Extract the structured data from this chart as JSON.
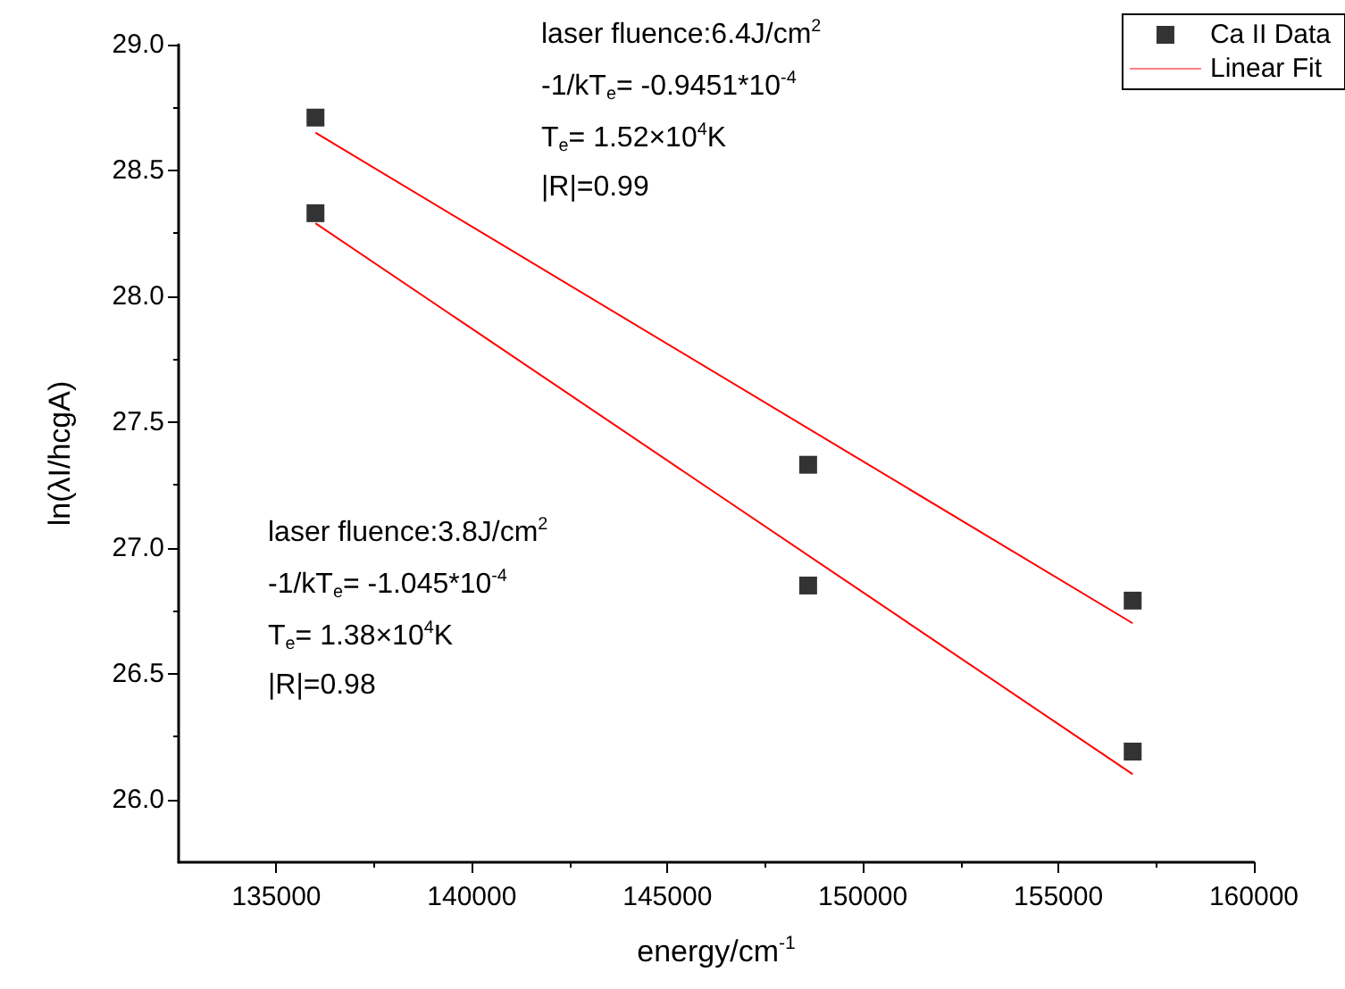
{
  "chart_data": {
    "type": "scatter",
    "xlabel": "energy/cm$^{-1}$",
    "ylabel": "ln(λI/hcgA)",
    "xlim": [
      132500,
      160000
    ],
    "xticks": [
      135000,
      140000,
      145000,
      150000,
      155000,
      160000
    ],
    "ylim": [
      25.75,
      29.0
    ],
    "yticks": [
      {
        "value": 26,
        "label": "26.0"
      },
      {
        "value": 26.5,
        "label": "26.5"
      },
      {
        "value": 27,
        "label": "27.0"
      },
      {
        "value": 27.5,
        "label": "27.5"
      },
      {
        "value": 28,
        "label": "28.0"
      },
      {
        "value": 28.5,
        "label": "28.5"
      },
      {
        "value": 29,
        "label": "29.0"
      }
    ],
    "legend": "top right",
    "grid": false,
    "series": [
      {
        "name": "Ca II Data",
        "marker": "square",
        "color": "#000000",
        "x": [
          136000,
          148600,
          156900
        ],
        "values": [
          28.71,
          27.33,
          26.79
        ]
      },
      {
        "marker": "square",
        "color": "#000000",
        "x": [
          136000,
          148600,
          156900
        ],
        "values": [
          28.33,
          26.85,
          26.19
        ]
      },
      {
        "name": "Linear Fit",
        "type": "line",
        "marker": "none",
        "color": "#ff0000",
        "x": [
          136000,
          156900
        ],
        "values": [
          28.65,
          26.7
        ]
      },
      {
        "type": "line",
        "marker": "none",
        "color": "#ff0000",
        "x": [
          136000,
          156900
        ],
        "values": [
          28.29,
          26.1
        ]
      }
    ],
    "annotations": [
      "laser fluence:6.4J/cm$^{2}$",
      "-1/kT$_{e}$= -0.9451*10$^{-4}$",
      "T$_{e}$= 1.52×10$^{4}$K",
      "|R|=0.99",
      "laser fluence:3.8J/cm$^{2}$",
      "-1/kT$_{e}$= -1.045*10$^{-4}$",
      "T$_{e}$= 1.38×10$^{4}$K",
      "|R|=0.98"
    ]
  }
}
